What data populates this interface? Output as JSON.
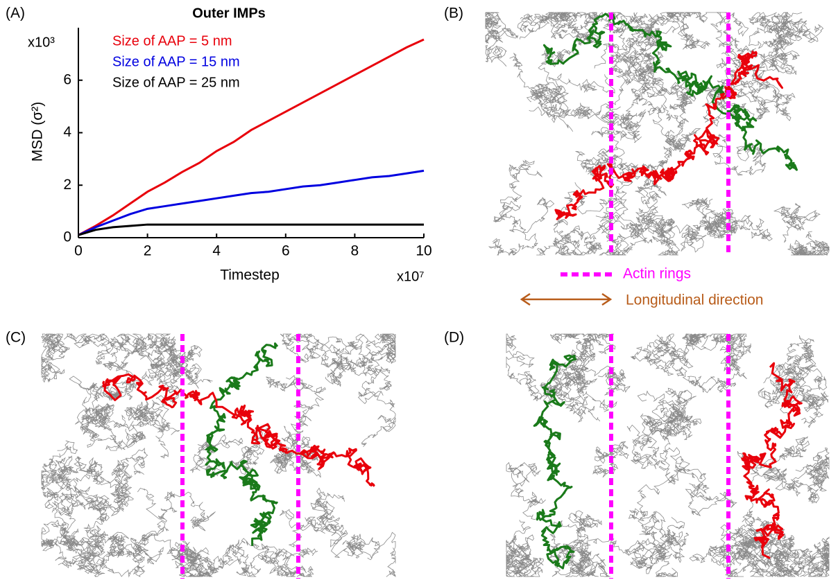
{
  "chart_data": {
    "type": "line",
    "title": "Outer IMPs",
    "xlabel": "Timestep",
    "ylabel": "MSD (σ²)",
    "x_multiplier": "x10⁷",
    "y_multiplier": "x10³",
    "x": [
      0,
      0.5,
      1,
      1.5,
      2,
      2.5,
      3,
      3.5,
      4,
      4.5,
      5,
      5.5,
      6,
      6.5,
      7,
      7.5,
      8,
      8.5,
      9,
      9.5,
      10
    ],
    "series": [
      {
        "name": "Size of AAP = 5 nm",
        "color": "#e8000b",
        "values": [
          0.1,
          0.45,
          0.85,
          1.3,
          1.75,
          2.1,
          2.5,
          2.85,
          3.3,
          3.65,
          4.1,
          4.45,
          4.8,
          5.15,
          5.5,
          5.85,
          6.2,
          6.55,
          6.9,
          7.25,
          7.55
        ]
      },
      {
        "name": "Size of AAP = 15 nm",
        "color": "#0000e0",
        "values": [
          0.1,
          0.4,
          0.65,
          0.9,
          1.1,
          1.2,
          1.3,
          1.4,
          1.5,
          1.6,
          1.7,
          1.75,
          1.85,
          1.95,
          2.0,
          2.1,
          2.2,
          2.3,
          2.35,
          2.45,
          2.55
        ]
      },
      {
        "name": "Size of AAP = 25 nm",
        "color": "#000000",
        "values": [
          0.1,
          0.3,
          0.4,
          0.45,
          0.5,
          0.5,
          0.5,
          0.5,
          0.5,
          0.5,
          0.5,
          0.5,
          0.5,
          0.5,
          0.5,
          0.5,
          0.5,
          0.5,
          0.5,
          0.5,
          0.5
        ]
      }
    ],
    "xlim": [
      0,
      10
    ],
    "ylim": [
      0,
      8
    ],
    "xticks": [
      0,
      2,
      4,
      6,
      8,
      10
    ],
    "yticks": [
      0,
      2,
      4,
      6
    ]
  },
  "panels": {
    "a": "(A)",
    "b": "(B)",
    "c": "(C)",
    "d": "(D)"
  },
  "legend": {
    "actin": "Actin rings",
    "direction": "Longitudinal direction"
  }
}
